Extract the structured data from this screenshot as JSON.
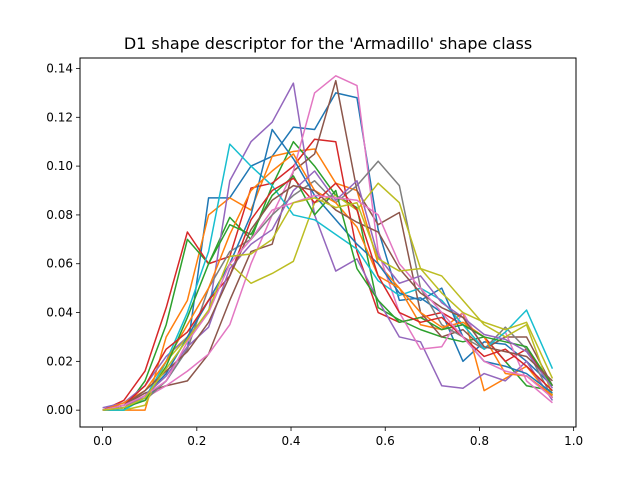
{
  "chart_data": {
    "type": "line",
    "title": "D1 shape descriptor for the 'Armadillo' shape class",
    "xlabel": "",
    "ylabel": "",
    "xlim": [
      -0.048,
      1.005
    ],
    "ylim": [
      -0.0069,
      0.1443
    ],
    "grid": false,
    "x_ticks": [
      0.0,
      0.2,
      0.4,
      0.6,
      0.8,
      1.0
    ],
    "x_tick_labels": [
      "0.0",
      "0.2",
      "0.4",
      "0.6",
      "0.8",
      "1.0"
    ],
    "y_ticks": [
      0.0,
      0.02,
      0.04,
      0.06,
      0.08,
      0.1,
      0.12,
      0.14
    ],
    "y_tick_labels": [
      "0.00",
      "0.02",
      "0.04",
      "0.06",
      "0.08",
      "0.10",
      "0.12",
      "0.14"
    ],
    "x": [
      0.0,
      0.045,
      0.09,
      0.135,
      0.18,
      0.225,
      0.27,
      0.315,
      0.36,
      0.405,
      0.45,
      0.495,
      0.54,
      0.585,
      0.63,
      0.675,
      0.72,
      0.765,
      0.81,
      0.855,
      0.9,
      0.955
    ],
    "series": [
      {
        "color": "#1f77b4",
        "values": [
          0.0,
          0.002,
          0.005,
          0.012,
          0.025,
          0.087,
          0.087,
          0.1,
          0.104,
          0.116,
          0.115,
          0.13,
          0.128,
          0.074,
          0.045,
          0.046,
          0.04,
          0.02,
          0.028,
          0.027,
          0.02,
          0.01
        ]
      },
      {
        "color": "#ff7f0e",
        "values": [
          0.0,
          0.0,
          0.0,
          0.03,
          0.045,
          0.08,
          0.087,
          0.082,
          0.104,
          0.106,
          0.107,
          0.093,
          0.09,
          0.06,
          0.05,
          0.035,
          0.033,
          0.04,
          0.008,
          0.013,
          0.018,
          0.005
        ]
      },
      {
        "color": "#2ca02c",
        "values": [
          0.0,
          0.0,
          0.012,
          0.035,
          0.07,
          0.06,
          0.079,
          0.07,
          0.092,
          0.11,
          0.1,
          0.088,
          0.083,
          0.042,
          0.037,
          0.033,
          0.03,
          0.028,
          0.03,
          0.02,
          0.01,
          0.008
        ]
      },
      {
        "color": "#d62728",
        "values": [
          0.0,
          0.004,
          0.016,
          0.042,
          0.073,
          0.06,
          0.063,
          0.091,
          0.093,
          0.1,
          0.111,
          0.11,
          0.065,
          0.04,
          0.036,
          0.038,
          0.04,
          0.035,
          0.03,
          0.02,
          0.025,
          0.01
        ]
      },
      {
        "color": "#9467bd",
        "values": [
          0.001,
          0.003,
          0.01,
          0.022,
          0.03,
          0.04,
          0.094,
          0.11,
          0.118,
          0.134,
          0.08,
          0.057,
          0.062,
          0.045,
          0.03,
          0.028,
          0.01,
          0.009,
          0.015,
          0.012,
          0.02,
          0.004
        ]
      },
      {
        "color": "#8c564b",
        "values": [
          0.0,
          0.002,
          0.007,
          0.01,
          0.012,
          0.023,
          0.045,
          0.065,
          0.068,
          0.098,
          0.105,
          0.135,
          0.09,
          0.076,
          0.081,
          0.04,
          0.03,
          0.033,
          0.025,
          0.03,
          0.03,
          0.01
        ]
      },
      {
        "color": "#e377c2",
        "values": [
          0.0,
          0.002,
          0.005,
          0.01,
          0.016,
          0.023,
          0.035,
          0.06,
          0.08,
          0.098,
          0.13,
          0.137,
          0.133,
          0.065,
          0.04,
          0.025,
          0.026,
          0.04,
          0.025,
          0.032,
          0.012,
          0.003
        ]
      },
      {
        "color": "#7f7f7f",
        "values": [
          0.0,
          0.001,
          0.004,
          0.012,
          0.025,
          0.05,
          0.065,
          0.07,
          0.08,
          0.088,
          0.094,
          0.085,
          0.092,
          0.102,
          0.092,
          0.05,
          0.035,
          0.03,
          0.025,
          0.034,
          0.025,
          0.005
        ]
      },
      {
        "color": "#bcbd22",
        "values": [
          0.0,
          0.0,
          0.002,
          0.02,
          0.03,
          0.045,
          0.06,
          0.052,
          0.056,
          0.061,
          0.085,
          0.088,
          0.082,
          0.093,
          0.085,
          0.058,
          0.055,
          0.045,
          0.035,
          0.03,
          0.035,
          0.006
        ]
      },
      {
        "color": "#17becf",
        "values": [
          0.0,
          0.0,
          0.005,
          0.02,
          0.04,
          0.065,
          0.109,
          0.1,
          0.092,
          0.08,
          0.078,
          0.072,
          0.066,
          0.053,
          0.047,
          0.05,
          0.045,
          0.035,
          0.025,
          0.032,
          0.041,
          0.017
        ]
      },
      {
        "color": "#1f77b4",
        "values": [
          0.0,
          0.001,
          0.006,
          0.015,
          0.03,
          0.045,
          0.06,
          0.08,
          0.115,
          0.103,
          0.088,
          0.078,
          0.068,
          0.06,
          0.048,
          0.045,
          0.05,
          0.03,
          0.02,
          0.018,
          0.015,
          0.007
        ]
      },
      {
        "color": "#ff7f0e",
        "values": [
          0.0,
          0.003,
          0.008,
          0.02,
          0.035,
          0.05,
          0.072,
          0.09,
          0.098,
          0.105,
          0.09,
          0.085,
          0.075,
          0.055,
          0.05,
          0.04,
          0.034,
          0.036,
          0.03,
          0.015,
          0.014,
          0.006
        ]
      },
      {
        "color": "#2ca02c",
        "values": [
          0.0,
          0.001,
          0.004,
          0.018,
          0.038,
          0.06,
          0.076,
          0.072,
          0.088,
          0.096,
          0.08,
          0.09,
          0.058,
          0.045,
          0.036,
          0.038,
          0.033,
          0.035,
          0.03,
          0.028,
          0.026,
          0.01
        ]
      },
      {
        "color": "#d62728",
        "values": [
          0.0,
          0.002,
          0.01,
          0.025,
          0.032,
          0.045,
          0.055,
          0.078,
          0.09,
          0.095,
          0.085,
          0.093,
          0.082,
          0.055,
          0.04,
          0.036,
          0.038,
          0.03,
          0.022,
          0.025,
          0.018,
          0.008
        ]
      },
      {
        "color": "#9467bd",
        "values": [
          0.0,
          0.001,
          0.006,
          0.014,
          0.026,
          0.034,
          0.058,
          0.068,
          0.074,
          0.09,
          0.098,
          0.086,
          0.094,
          0.063,
          0.052,
          0.055,
          0.044,
          0.038,
          0.031,
          0.029,
          0.024,
          0.009
        ]
      },
      {
        "color": "#8c564b",
        "values": [
          0.0,
          0.002,
          0.008,
          0.016,
          0.024,
          0.036,
          0.055,
          0.074,
          0.086,
          0.092,
          0.09,
          0.082,
          0.077,
          0.073,
          0.058,
          0.048,
          0.042,
          0.038,
          0.026,
          0.024,
          0.022,
          0.012
        ]
      },
      {
        "color": "#e377c2",
        "values": [
          0.0,
          0.002,
          0.006,
          0.012,
          0.028,
          0.04,
          0.06,
          0.07,
          0.082,
          0.085,
          0.088,
          0.087,
          0.086,
          0.08,
          0.06,
          0.05,
          0.04,
          0.03,
          0.02,
          0.016,
          0.014,
          0.005
        ]
      },
      {
        "color": "#bcbd22",
        "values": [
          0.0,
          0.001,
          0.005,
          0.017,
          0.029,
          0.041,
          0.063,
          0.064,
          0.07,
          0.085,
          0.087,
          0.083,
          0.085,
          0.062,
          0.057,
          0.058,
          0.048,
          0.04,
          0.036,
          0.033,
          0.036,
          0.013
        ]
      }
    ]
  }
}
